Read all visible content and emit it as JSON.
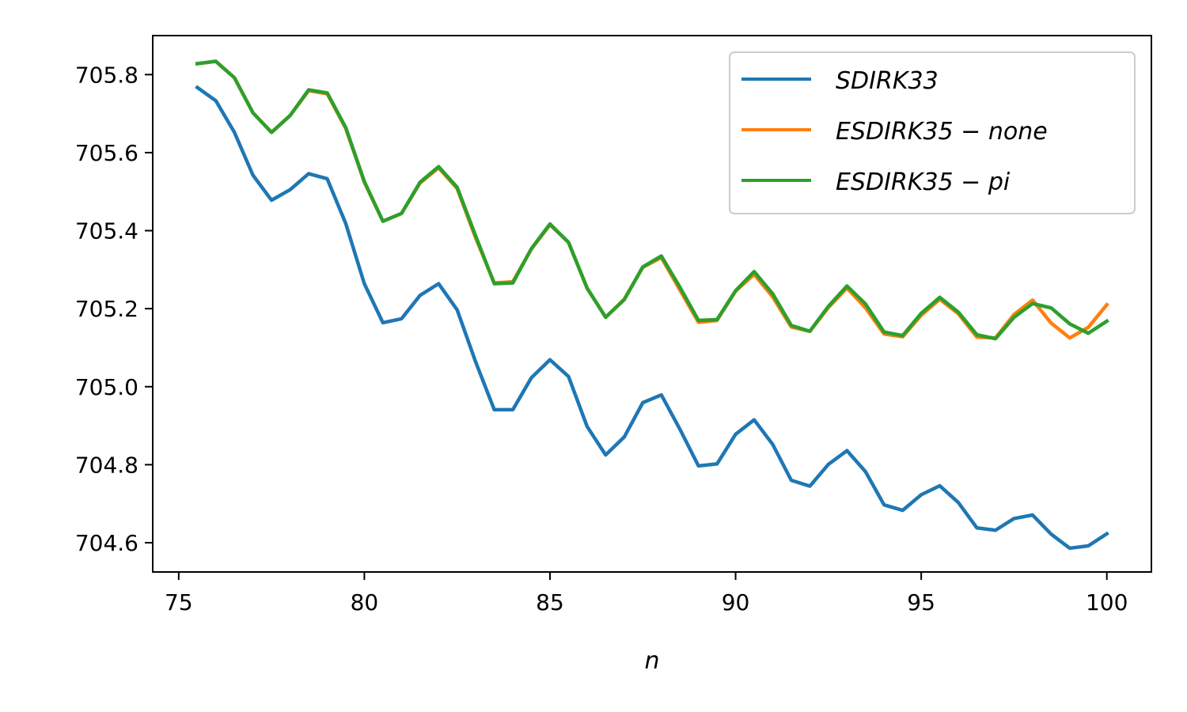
{
  "chart_data": {
    "type": "line",
    "title": "",
    "xlabel": "n",
    "ylabel": "",
    "xlim": [
      74.3,
      101.2
    ],
    "ylim": [
      704.525,
      705.9
    ],
    "xticks": [
      75,
      80,
      85,
      90,
      95,
      100
    ],
    "xtick_labels": [
      "75",
      "80",
      "85",
      "90",
      "95",
      "100"
    ],
    "yticks": [
      704.6,
      704.8,
      705.0,
      705.2,
      705.4,
      705.6,
      705.8
    ],
    "ytick_labels": [
      "704.6",
      "704.8",
      "705.0",
      "705.2",
      "705.4",
      "705.6",
      "705.8"
    ],
    "grid": false,
    "legend_position": "upper right",
    "x": [
      75.5,
      76,
      76.5,
      77,
      77.5,
      78,
      78.5,
      79,
      79.5,
      80,
      80.5,
      81,
      81.5,
      82,
      82.5,
      83,
      83.5,
      84,
      84.5,
      85,
      85.5,
      86,
      86.5,
      87,
      87.5,
      88,
      88.5,
      89,
      89.5,
      90,
      90.5,
      91,
      91.5,
      92,
      92.5,
      93,
      93.5,
      94,
      94.5,
      95,
      95.5,
      96,
      96.5,
      97,
      97.5,
      98,
      98.5,
      99,
      99.5,
      100
    ],
    "series": [
      {
        "name": "SDIRK33",
        "color": "#1f77b4",
        "values": [
          705.767,
          705.733,
          705.652,
          705.542,
          705.478,
          705.505,
          705.546,
          705.533,
          705.418,
          705.264,
          705.164,
          705.174,
          705.234,
          705.264,
          705.197,
          705.063,
          704.941,
          704.941,
          705.023,
          705.069,
          705.026,
          704.898,
          704.825,
          704.871,
          704.959,
          704.979,
          704.891,
          704.797,
          704.802,
          704.878,
          704.915,
          704.852,
          704.76,
          704.745,
          704.801,
          704.836,
          704.782,
          704.697,
          704.683,
          704.723,
          704.746,
          704.703,
          704.638,
          704.632,
          704.662,
          704.671,
          704.622,
          704.586,
          704.592,
          704.623
        ]
      },
      {
        "name": "ESDIRK35 - none",
        "color": "#ff7f0e",
        "values": [
          705.828,
          705.834,
          705.792,
          705.702,
          705.652,
          705.695,
          705.759,
          705.751,
          705.662,
          705.524,
          705.424,
          705.444,
          705.522,
          705.561,
          705.508,
          705.381,
          705.266,
          705.269,
          705.353,
          705.415,
          705.37,
          705.252,
          705.178,
          705.224,
          705.306,
          705.331,
          705.248,
          705.165,
          705.17,
          705.245,
          705.288,
          705.23,
          705.153,
          705.142,
          705.203,
          705.253,
          705.202,
          705.135,
          705.128,
          705.183,
          705.224,
          705.187,
          705.127,
          705.125,
          705.185,
          705.222,
          705.163,
          705.125,
          705.152,
          705.21
        ]
      },
      {
        "name": "ESDIRK35 - pi",
        "color": "#2ca02c",
        "values": [
          705.828,
          705.834,
          705.792,
          705.702,
          705.652,
          705.695,
          705.761,
          705.753,
          705.664,
          705.526,
          705.424,
          705.444,
          705.524,
          705.564,
          705.511,
          705.386,
          705.264,
          705.266,
          705.354,
          705.417,
          705.37,
          705.253,
          705.178,
          705.223,
          705.307,
          705.335,
          705.255,
          705.17,
          705.172,
          705.246,
          705.295,
          705.238,
          705.157,
          705.142,
          705.206,
          705.258,
          705.212,
          705.14,
          705.131,
          705.188,
          705.229,
          705.191,
          705.133,
          705.123,
          705.178,
          705.213,
          705.202,
          705.161,
          705.137,
          705.168
        ]
      }
    ],
    "legend_labels": [
      "SDIRK33",
      "ESDIRK35 − none",
      "ESDIRK35 − pi"
    ]
  }
}
